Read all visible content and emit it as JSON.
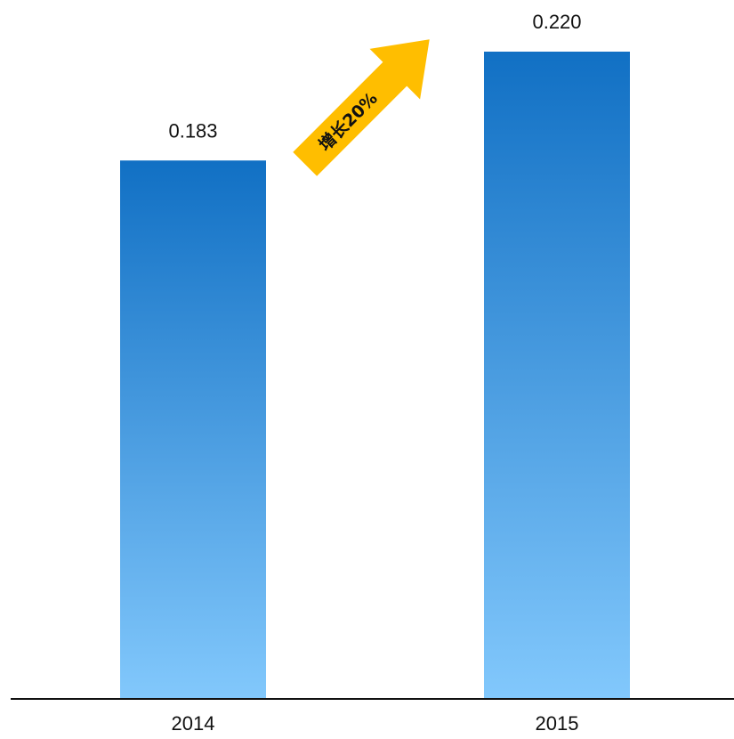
{
  "chart_data": {
    "type": "bar",
    "categories": [
      "2014",
      "2015"
    ],
    "values": [
      0.183,
      0.22
    ],
    "value_labels": [
      "0.183",
      "0.220"
    ],
    "ylim": [
      0,
      0.22
    ],
    "grid": false,
    "bar_gradient": {
      "top": "#1170c4",
      "bottom": "#82c8fc"
    },
    "annotation": {
      "text": "增长20%",
      "color": "#ffbe00"
    }
  }
}
